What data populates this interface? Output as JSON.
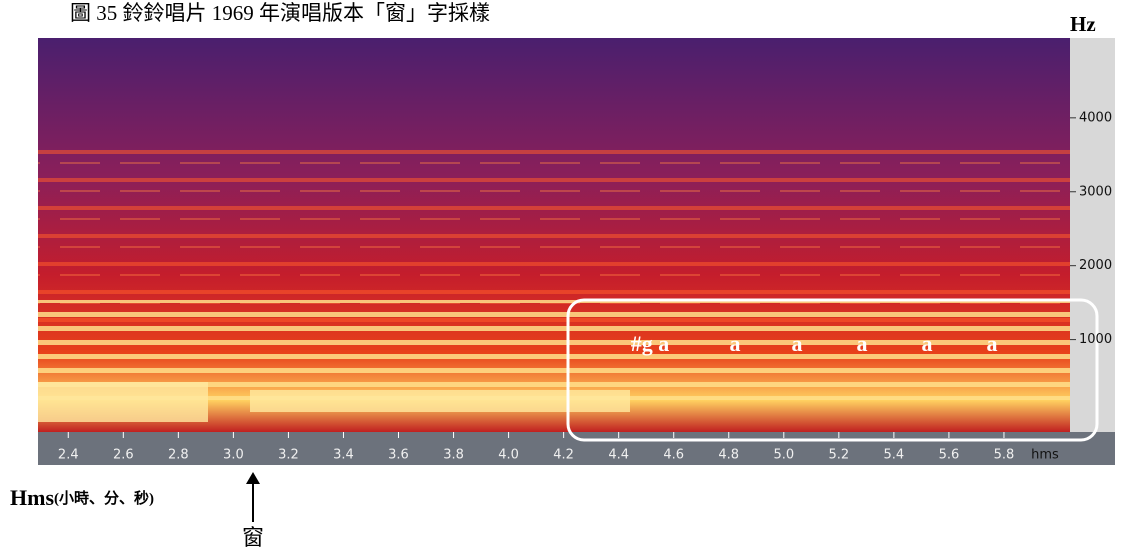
{
  "chart_data": {
    "type": "spectrogram",
    "title": "圖 35  鈴鈴唱片 1969 年演唱版本「窗」字採樣",
    "y_label": "Hz",
    "x_unit": "hms",
    "x_label": "Hms",
    "x_label_note": "(小時、分、秒)",
    "xlim": [
      2.29,
      6.04
    ],
    "xticks": [
      2.4,
      2.6,
      2.8,
      {
        "value": 3.0,
        "label": "3.0"
      },
      3.2,
      3.4,
      3.6,
      3.8,
      {
        "value": 4.0,
        "label": "4.0"
      },
      4.2,
      4.4,
      4.6,
      4.8,
      {
        "value": 5.0,
        "label": "5.0"
      },
      5.2,
      5.4,
      5.6,
      5.8
    ],
    "ylim": [
      -250,
      5080
    ],
    "yticks": [
      1000,
      2000,
      3000,
      4000
    ],
    "annotations": [
      "#g a",
      "a",
      "a",
      "a",
      "a",
      "a"
    ],
    "arrow_label": "窗"
  }
}
